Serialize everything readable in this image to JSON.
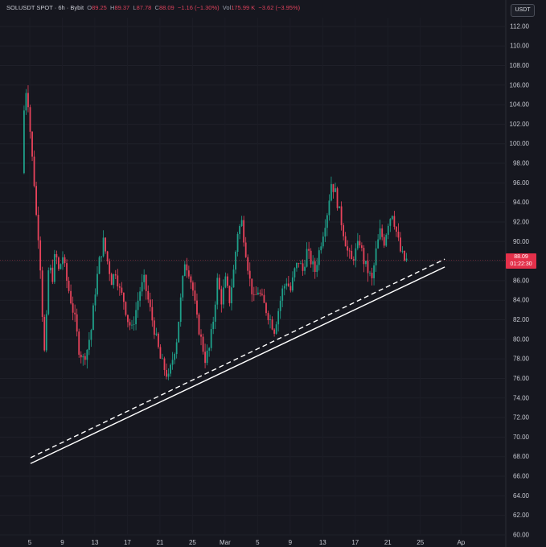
{
  "legend": {
    "symbol": "SOLUSDT SPOT",
    "sep": "·",
    "interval": "6h",
    "exchange": "Bybit",
    "o_label": "O",
    "o": "89.25",
    "h_label": "H",
    "h": "89.37",
    "l_label": "L",
    "l": "87.78",
    "c_label": "C",
    "c": "88.09",
    "change": "−1.16 (−1.30%)",
    "vol_label": "Vol",
    "vol": "175.99 K",
    "vol_change": "−3.62 (−3.95%)"
  },
  "unit_button": "USDT",
  "last_price": {
    "value": "88.09",
    "countdown": "01:22:30"
  },
  "colors": {
    "background": "#16171f",
    "up": "#1fa08a",
    "down": "#e8435b",
    "axis_text": "#c7c9d1",
    "trendline": "#ffffff"
  },
  "chart_data": {
    "type": "candlestick",
    "interval": "6h",
    "y_ticks": [
      60,
      62,
      64,
      66,
      68,
      70,
      72,
      74,
      76,
      78,
      80,
      82,
      84,
      86,
      88,
      90,
      92,
      94,
      96,
      98,
      100,
      102,
      104,
      106,
      108,
      110,
      112
    ],
    "ylim": [
      60,
      113
    ],
    "x_ticks": [
      {
        "label": "5",
        "day": 5
      },
      {
        "label": "9",
        "day": 9
      },
      {
        "label": "13",
        "day": 13
      },
      {
        "label": "17",
        "day": 17
      },
      {
        "label": "21",
        "day": 21
      },
      {
        "label": "25",
        "day": 25
      },
      {
        "label": "Mar",
        "day": 29
      },
      {
        "label": "5",
        "day": 33
      },
      {
        "label": "9",
        "day": 37
      },
      {
        "label": "13",
        "day": 41
      },
      {
        "label": "17",
        "day": 45
      },
      {
        "label": "21",
        "day": 49
      },
      {
        "label": "25",
        "day": 53
      },
      {
        "label": "Ap",
        "day": 58
      }
    ],
    "xlim": [
      4.2,
      58.3
    ],
    "price_path": [
      [
        4.3,
        97
      ],
      [
        4.5,
        103
      ],
      [
        4.8,
        105.5
      ],
      [
        5.1,
        104
      ],
      [
        5.4,
        100
      ],
      [
        5.8,
        96
      ],
      [
        6.1,
        92
      ],
      [
        6.4,
        90
      ],
      [
        6.7,
        85
      ],
      [
        7.0,
        78
      ],
      [
        7.3,
        82
      ],
      [
        7.6,
        88
      ],
      [
        8.0,
        86
      ],
      [
        8.4,
        89
      ],
      [
        8.8,
        87
      ],
      [
        9.3,
        88.5
      ],
      [
        9.8,
        86
      ],
      [
        10.3,
        84
      ],
      [
        10.8,
        82
      ],
      [
        11.3,
        79
      ],
      [
        11.8,
        78
      ],
      [
        12.3,
        79
      ],
      [
        12.8,
        81
      ],
      [
        13.3,
        85
      ],
      [
        13.8,
        88
      ],
      [
        14.3,
        90
      ],
      [
        14.8,
        88
      ],
      [
        15.3,
        86
      ],
      [
        15.8,
        87
      ],
      [
        16.3,
        85
      ],
      [
        16.8,
        84
      ],
      [
        17.3,
        82
      ],
      [
        17.8,
        81
      ],
      [
        18.3,
        83
      ],
      [
        18.8,
        85
      ],
      [
        19.3,
        86
      ],
      [
        19.8,
        84
      ],
      [
        20.3,
        82
      ],
      [
        20.8,
        80
      ],
      [
        21.3,
        78
      ],
      [
        21.8,
        77
      ],
      [
        22.3,
        76
      ],
      [
        22.8,
        78
      ],
      [
        23.3,
        80
      ],
      [
        23.8,
        84
      ],
      [
        24.3,
        88
      ],
      [
        24.8,
        87
      ],
      [
        25.3,
        85
      ],
      [
        25.8,
        82
      ],
      [
        26.3,
        80
      ],
      [
        26.8,
        78
      ],
      [
        27.3,
        79
      ],
      [
        27.8,
        82
      ],
      [
        28.3,
        86
      ],
      [
        28.8,
        84
      ],
      [
        29.3,
        86
      ],
      [
        29.8,
        84
      ],
      [
        30.3,
        87
      ],
      [
        30.8,
        91
      ],
      [
        31.3,
        92
      ],
      [
        31.8,
        89
      ],
      [
        32.3,
        86
      ],
      [
        32.8,
        84
      ],
      [
        33.3,
        85
      ],
      [
        33.8,
        84
      ],
      [
        34.3,
        83
      ],
      [
        34.8,
        82
      ],
      [
        35.3,
        81
      ],
      [
        35.8,
        83
      ],
      [
        36.3,
        85
      ],
      [
        36.8,
        86
      ],
      [
        37.3,
        85
      ],
      [
        37.8,
        87
      ],
      [
        38.3,
        88
      ],
      [
        38.8,
        87
      ],
      [
        39.3,
        89
      ],
      [
        39.8,
        88
      ],
      [
        40.3,
        87
      ],
      [
        40.8,
        89
      ],
      [
        41.3,
        91
      ],
      [
        41.8,
        93
      ],
      [
        42.3,
        96
      ],
      [
        42.8,
        95
      ],
      [
        43.3,
        93
      ],
      [
        43.8,
        91
      ],
      [
        44.3,
        89
      ],
      [
        44.8,
        88
      ],
      [
        45.3,
        89
      ],
      [
        45.8,
        90
      ],
      [
        46.3,
        88
      ],
      [
        46.8,
        87
      ],
      [
        47.3,
        86
      ],
      [
        47.8,
        89
      ],
      [
        48.3,
        91
      ],
      [
        48.8,
        90
      ],
      [
        49.3,
        92
      ],
      [
        49.8,
        93
      ],
      [
        50.3,
        91
      ],
      [
        50.8,
        89
      ],
      [
        51.3,
        88.09
      ]
    ],
    "trendlines": [
      {
        "style": "dashed",
        "from": {
          "day": 5.1,
          "price": 67.9
        },
        "to": {
          "day": 56.0,
          "price": 88.2
        }
      },
      {
        "style": "solid",
        "from": {
          "day": 5.1,
          "price": 67.3
        },
        "to": {
          "day": 56.0,
          "price": 87.4
        }
      }
    ],
    "last_price_line": 88.09
  }
}
